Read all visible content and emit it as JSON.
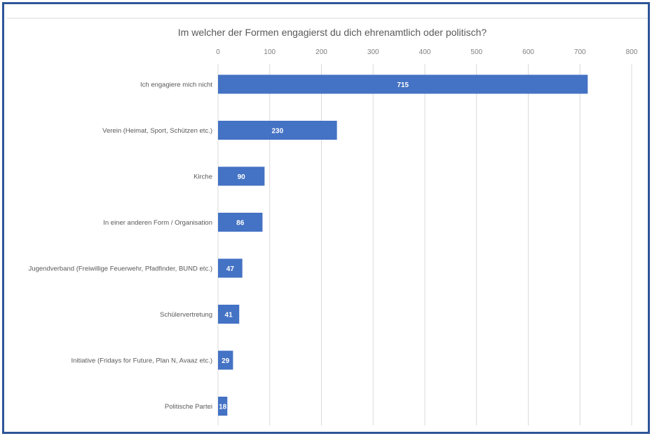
{
  "chart_data": {
    "type": "bar",
    "orientation": "horizontal",
    "title": "Im welcher der Formen engagierst du dich ehrenamtlich oder politisch?",
    "xlabel": "",
    "ylabel": "",
    "xlim": [
      0,
      800
    ],
    "ticks": [
      0,
      100,
      200,
      300,
      400,
      500,
      600,
      700,
      800
    ],
    "grid": true,
    "legend": "none",
    "bar_color": "#4472c4",
    "categories": [
      "Ich engagiere mich nicht",
      "Verein (Heimat, Sport, Schützen etc.)",
      "Kirche",
      "In einer anderen Form / Organisation",
      "Jugendverband (Freiwillige Feuerwehr, Pfadfinder, BUND etc.)",
      "Schülervertretung",
      "Initiative (Fridays for Future, Plan N, Avaaz etc.)",
      "Politische Partei"
    ],
    "values": [
      715,
      230,
      90,
      86,
      47,
      41,
      29,
      18
    ]
  },
  "colors": {
    "frame": "#2e5597",
    "bar": "#4472c4",
    "grid": "#d9d9d9"
  }
}
